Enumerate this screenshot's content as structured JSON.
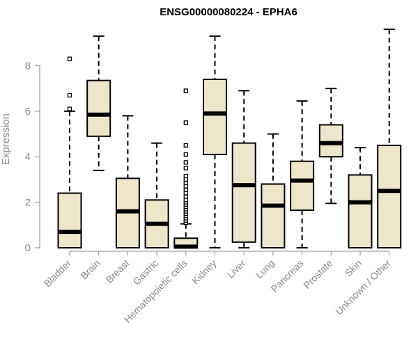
{
  "chart_data": {
    "type": "boxplot",
    "title": "ENSG00000080224 - EPHA6",
    "xlabel": "",
    "ylabel": "Expression",
    "ylim": [
      0,
      9.8
    ],
    "yticks": [
      0,
      2,
      4,
      6,
      8
    ],
    "grid": false,
    "colors": {
      "box_fill": "#ede6cc",
      "box_stroke": "#000000",
      "axis": "#8a8a8a"
    },
    "categories": [
      "Bladder",
      "Brain",
      "Breast",
      "Gastric",
      "Hematopoietic cells",
      "Kidney",
      "Liver",
      "Lung",
      "Pancreas",
      "Prostate",
      "Skin",
      "Unknown / Other"
    ],
    "boxes": [
      {
        "name": "Bladder",
        "min": 0,
        "q1": 0,
        "median": 0.7,
        "q3": 2.4,
        "max": 6.0,
        "outliers": [
          6.1,
          6.7,
          8.3
        ]
      },
      {
        "name": "Brain",
        "min": 3.4,
        "q1": 4.9,
        "median": 5.85,
        "q3": 7.35,
        "max": 9.3,
        "outliers": []
      },
      {
        "name": "Breast",
        "min": 0,
        "q1": 0,
        "median": 1.6,
        "q3": 3.05,
        "max": 5.8,
        "outliers": []
      },
      {
        "name": "Gastric",
        "min": 0,
        "q1": 0,
        "median": 1.05,
        "q3": 2.1,
        "max": 4.6,
        "outliers": []
      },
      {
        "name": "Hematopoietic cells",
        "min": 0,
        "q1": 0,
        "median": 0.05,
        "q3": 0.42,
        "max": 1.05,
        "outliers": [
          1.1,
          1.2,
          1.3,
          1.4,
          1.5,
          1.6,
          1.7,
          1.8,
          1.9,
          2.0,
          2.1,
          2.25,
          2.4,
          2.55,
          2.7,
          2.85,
          3.0,
          3.15,
          3.5,
          3.75,
          4.1,
          4.5,
          5.5,
          6.9
        ]
      },
      {
        "name": "Kidney",
        "min": 0,
        "q1": 4.1,
        "median": 5.9,
        "q3": 7.4,
        "max": 9.3,
        "outliers": []
      },
      {
        "name": "Liver",
        "min": 0,
        "q1": 0.25,
        "median": 2.75,
        "q3": 4.6,
        "max": 6.9,
        "outliers": []
      },
      {
        "name": "Lung",
        "min": 0,
        "q1": 0,
        "median": 1.85,
        "q3": 2.8,
        "max": 5.0,
        "outliers": []
      },
      {
        "name": "Pancreas",
        "min": 0,
        "q1": 1.65,
        "median": 2.95,
        "q3": 3.8,
        "max": 6.45,
        "outliers": []
      },
      {
        "name": "Prostate",
        "min": 1.95,
        "q1": 4.0,
        "median": 4.6,
        "q3": 5.4,
        "max": 7.0,
        "outliers": []
      },
      {
        "name": "Skin",
        "min": 0,
        "q1": 0,
        "median": 2.0,
        "q3": 3.2,
        "max": 4.4,
        "outliers": []
      },
      {
        "name": "Unknown / Other",
        "min": 0,
        "q1": 0,
        "median": 2.5,
        "q3": 4.5,
        "max": 9.6,
        "outliers": []
      }
    ]
  }
}
